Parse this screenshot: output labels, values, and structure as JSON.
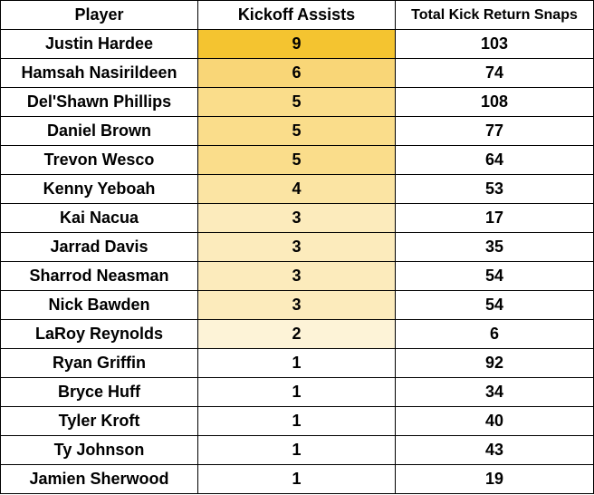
{
  "table": {
    "headers": [
      "Player",
      "Kickoff Assists",
      "Total Kick Return Snaps"
    ],
    "rows": [
      {
        "player": "Justin Hardee",
        "assists": "9",
        "snaps": "103",
        "heat": "#f4c430"
      },
      {
        "player": "Hamsah Nasirildeen",
        "assists": "6",
        "snaps": "74",
        "heat": "#f9d677"
      },
      {
        "player": "Del'Shawn Phillips",
        "assists": "5",
        "snaps": "108",
        "heat": "#fadd8b"
      },
      {
        "player": "Daniel Brown",
        "assists": "5",
        "snaps": "77",
        "heat": "#fadd8b"
      },
      {
        "player": "Trevon Wesco",
        "assists": "5",
        "snaps": "64",
        "heat": "#fadd8b"
      },
      {
        "player": "Kenny Yeboah",
        "assists": "4",
        "snaps": "53",
        "heat": "#fbe4a3"
      },
      {
        "player": "Kai Nacua",
        "assists": "3",
        "snaps": "17",
        "heat": "#fcebbc"
      },
      {
        "player": "Jarrad Davis",
        "assists": "3",
        "snaps": "35",
        "heat": "#fcebbc"
      },
      {
        "player": "Sharrod Neasman",
        "assists": "3",
        "snaps": "54",
        "heat": "#fcebbc"
      },
      {
        "player": "Nick Bawden",
        "assists": "3",
        "snaps": "54",
        "heat": "#fcebbc"
      },
      {
        "player": "LaRoy Reynolds",
        "assists": "2",
        "snaps": "6",
        "heat": "#fdf3d7"
      },
      {
        "player": "Ryan Griffin",
        "assists": "1",
        "snaps": "92",
        "heat": "#ffffff"
      },
      {
        "player": "Bryce Huff",
        "assists": "1",
        "snaps": "34",
        "heat": "#ffffff"
      },
      {
        "player": "Tyler Kroft",
        "assists": "1",
        "snaps": "40",
        "heat": "#ffffff"
      },
      {
        "player": "Ty Johnson",
        "assists": "1",
        "snaps": "43",
        "heat": "#ffffff"
      },
      {
        "player": "Jamien Sherwood",
        "assists": "1",
        "snaps": "19",
        "heat": "#ffffff"
      }
    ]
  }
}
